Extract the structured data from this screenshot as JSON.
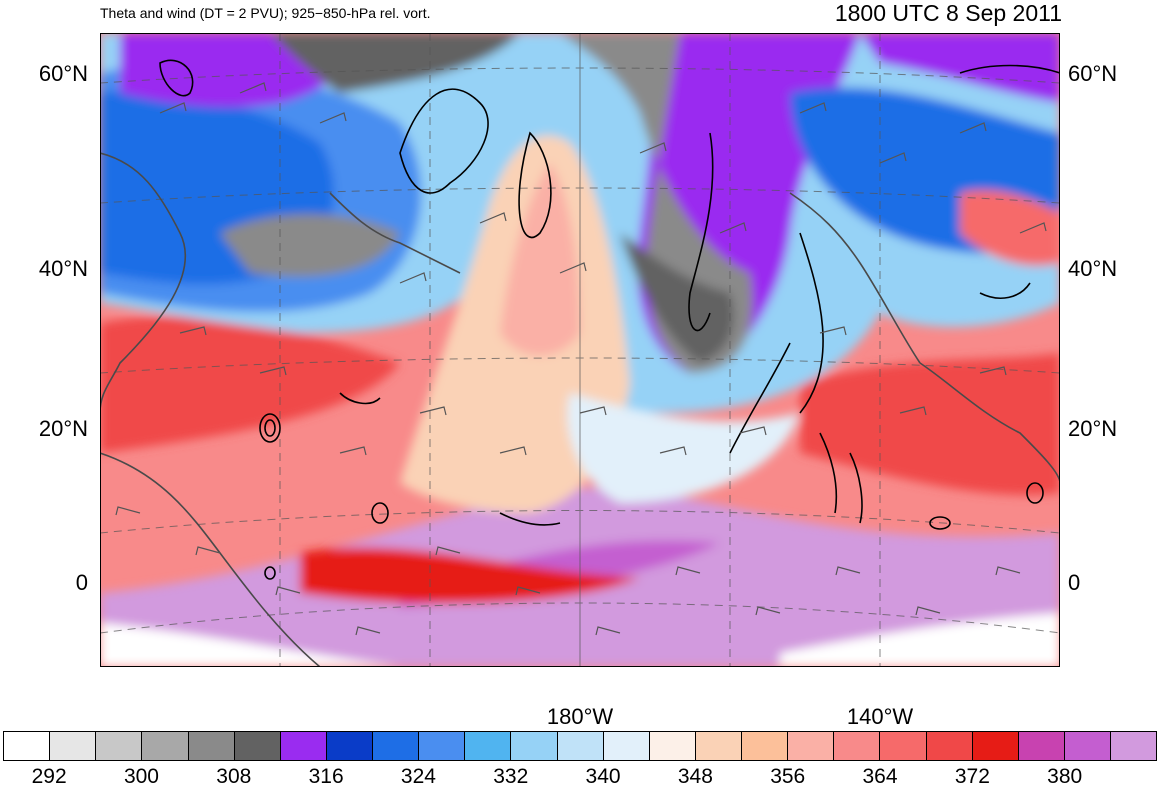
{
  "header": {
    "left_title": "Theta and wind (DT = 2 PVU); 925−850-hPa rel. vort.",
    "right_title": "1800 UTC 8 Sep 2011"
  },
  "map": {
    "lat_labels": [
      "60°N",
      "40°N",
      "20°N",
      "0"
    ],
    "lon_labels": [
      "180°W",
      "140°W"
    ]
  },
  "colorbar": {
    "colors": [
      "#ffffff",
      "#e6e6e6",
      "#c8c8c8",
      "#a8a8a8",
      "#8a8a8a",
      "#626262",
      "#9a2cf0",
      "#0a3cc8",
      "#1e6ee6",
      "#4a8ef0",
      "#50b4f0",
      "#96d2f6",
      "#c0e2f8",
      "#e2f0fa",
      "#fcf0e8",
      "#fad2b6",
      "#fcc09a",
      "#fab0a6",
      "#f88a8a",
      "#f66a6a",
      "#f04848",
      "#e61c16",
      "#c842b0",
      "#c45ed0",
      "#d29ade"
    ],
    "labels": [
      "292",
      "300",
      "308",
      "316",
      "324",
      "332",
      "340",
      "348",
      "356",
      "364",
      "372",
      "380"
    ]
  }
}
